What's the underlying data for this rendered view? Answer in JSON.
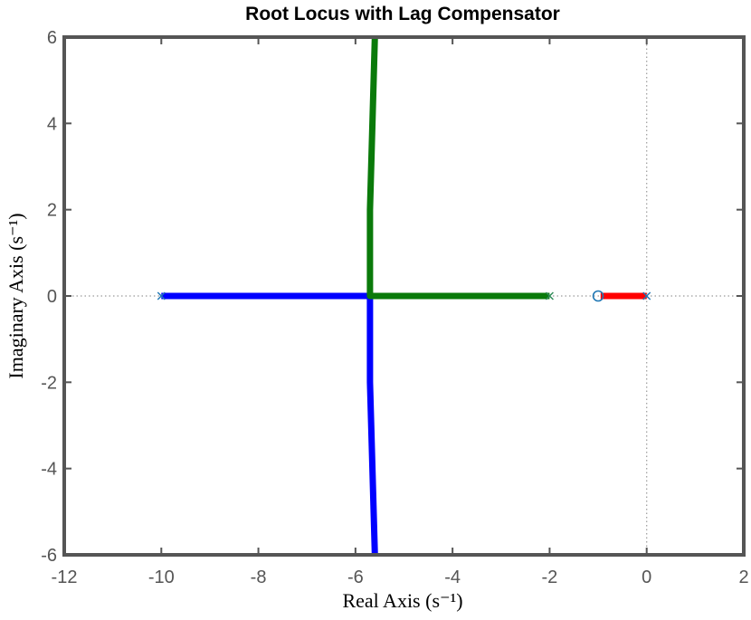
{
  "chart_data": {
    "type": "line",
    "title": "Root Locus with Lag Compensator",
    "xlabel": "Real Axis (s⁻¹)",
    "ylabel": "Imaginary Axis (s⁻¹)",
    "xlim": [
      -12,
      2
    ],
    "ylim": [
      -6,
      6
    ],
    "xticks": [
      -12,
      -10,
      -8,
      -6,
      -4,
      -2,
      0,
      2
    ],
    "yticks": [
      -6,
      -4,
      -2,
      0,
      2,
      4,
      6
    ],
    "xtick_labels": [
      "-12",
      "-10",
      "-8",
      "-6",
      "-4",
      "-2",
      "0",
      "2"
    ],
    "ytick_labels": [
      "-6",
      "-4",
      "-2",
      "0",
      "2",
      "4",
      "6"
    ],
    "grid": false,
    "reference_lines": [
      "x=0 dotted",
      "y=0 dotted"
    ],
    "poles": [
      {
        "x": -10,
        "y": 0,
        "color": "#1f77b4"
      },
      {
        "x": -2,
        "y": 0,
        "color": "#2e8b57"
      },
      {
        "x": 0,
        "y": 0,
        "color": "#1f77b4"
      }
    ],
    "zeros": [
      {
        "x": -1,
        "y": 0,
        "color": "#1f77b4"
      }
    ],
    "series": [
      {
        "color": "#0000ff",
        "points": [
          [
            -10,
            0
          ],
          [
            -5.7,
            0
          ],
          [
            -5.7,
            -2
          ],
          [
            -5.6,
            -6
          ]
        ]
      },
      {
        "color": "#0a7a0a",
        "points": [
          [
            -2,
            0
          ],
          [
            -5.7,
            0
          ],
          [
            -5.7,
            2
          ],
          [
            -5.6,
            6
          ]
        ]
      },
      {
        "color": "#ff0000",
        "points": [
          [
            0,
            0
          ],
          [
            -0.95,
            0
          ]
        ]
      }
    ]
  }
}
